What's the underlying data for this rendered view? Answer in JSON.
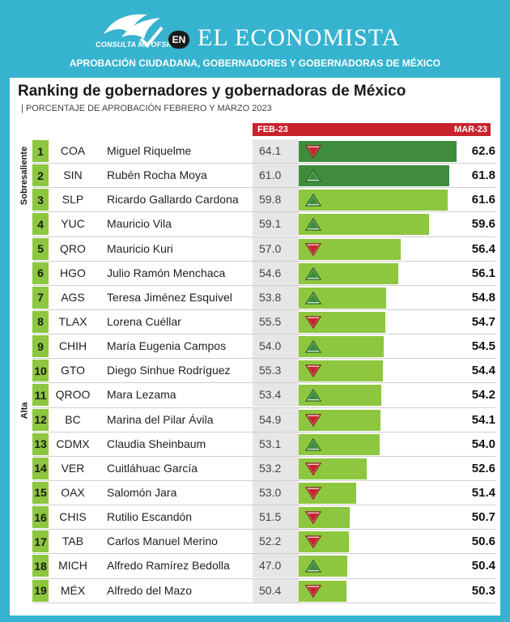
{
  "header": {
    "logo_text": "CONSULTA MITOFSKY",
    "en_badge": "EN",
    "brand": "EL ECONOMISTA",
    "subtitle": "APROBACIÓN CIUDADANA, GOBERNADORES Y GOBERNADORAS DE MÉXICO"
  },
  "chart_data": {
    "type": "bar",
    "title": "Ranking de gobernadores y gobernadoras de México",
    "note": "| PORCENTAJE DE APROBACIÓN FEBRERO Y MARZO 2023",
    "col_feb": "FEB-23",
    "col_mar": "MAR-23",
    "categories_group": [
      {
        "label": "Sobresaliente",
        "from_rank": 1,
        "to_rank": 3
      },
      {
        "label": "Alta",
        "from_rank": 4,
        "to_rank": 19
      }
    ],
    "colors": {
      "sobresaliente": "#3f8d3c",
      "alta": "#8dc63f",
      "up_arrow": "#3f8d3c",
      "down_arrow": "#c8232c"
    },
    "rows": [
      {
        "rank": "1",
        "state": "COA",
        "name": "Miguel Riquelme",
        "feb": 64.1,
        "mar": 62.6,
        "trend": "down"
      },
      {
        "rank": "2",
        "state": "SIN",
        "name": "Rubén Rocha Moya",
        "feb": 61.0,
        "mar": 61.8,
        "trend": "up"
      },
      {
        "rank": "3",
        "state": "SLP",
        "name": "Ricardo Gallardo Cardona",
        "feb": 59.8,
        "mar": 61.6,
        "trend": "up"
      },
      {
        "rank": "4",
        "state": "YUC",
        "name": "Mauricio Vila",
        "feb": 59.1,
        "mar": 59.6,
        "trend": "up"
      },
      {
        "rank": "5",
        "state": "QRO",
        "name": "Mauricio Kuri",
        "feb": 57.0,
        "mar": 56.4,
        "trend": "down"
      },
      {
        "rank": "6",
        "state": "HGO",
        "name": "Julio Ramón Menchaca",
        "feb": 54.6,
        "mar": 56.1,
        "trend": "up"
      },
      {
        "rank": "7",
        "state": "AGS",
        "name": "Teresa Jiménez Esquivel",
        "feb": 53.8,
        "mar": 54.8,
        "trend": "up"
      },
      {
        "rank": "8",
        "state": "TLAX",
        "name": "Lorena Cuéllar",
        "feb": 55.5,
        "mar": 54.7,
        "trend": "down"
      },
      {
        "rank": "9",
        "state": "CHIH",
        "name": "María Eugenia Campos",
        "feb": 54.0,
        "mar": 54.5,
        "trend": "up"
      },
      {
        "rank": "10",
        "state": "GTO",
        "name": "Diego Sinhue Rodríguez",
        "feb": 55.3,
        "mar": 54.4,
        "trend": "down"
      },
      {
        "rank": "11",
        "state": "QROO",
        "name": "Mara Lezama",
        "feb": 53.4,
        "mar": 54.2,
        "trend": "up"
      },
      {
        "rank": "12",
        "state": "BC",
        "name": "Marina del Pilar Ávila",
        "feb": 54.9,
        "mar": 54.1,
        "trend": "down"
      },
      {
        "rank": "13",
        "state": "CDMX",
        "name": "Claudia Sheinbaum",
        "feb": 53.1,
        "mar": 54.0,
        "trend": "up"
      },
      {
        "rank": "14",
        "state": "VER",
        "name": "Cuitláhuac García",
        "feb": 53.2,
        "mar": 52.6,
        "trend": "down"
      },
      {
        "rank": "15",
        "state": "OAX",
        "name": "Salomón Jara",
        "feb": 53.0,
        "mar": 51.4,
        "trend": "down"
      },
      {
        "rank": "16",
        "state": "CHIS",
        "name": "Rutilio Escandón",
        "feb": 51.5,
        "mar": 50.7,
        "trend": "down"
      },
      {
        "rank": "17",
        "state": "TAB",
        "name": "Carlos Manuel Merino",
        "feb": 52.2,
        "mar": 50.6,
        "trend": "down"
      },
      {
        "rank": "18",
        "state": "MICH",
        "name": "Alfredo Ramírez Bedolla",
        "feb": 47.0,
        "mar": 50.4,
        "trend": "up"
      },
      {
        "rank": "19",
        "state": "MÉX",
        "name": "Alfredo del Mazo",
        "feb": 50.4,
        "mar": 50.3,
        "trend": "down"
      }
    ]
  }
}
